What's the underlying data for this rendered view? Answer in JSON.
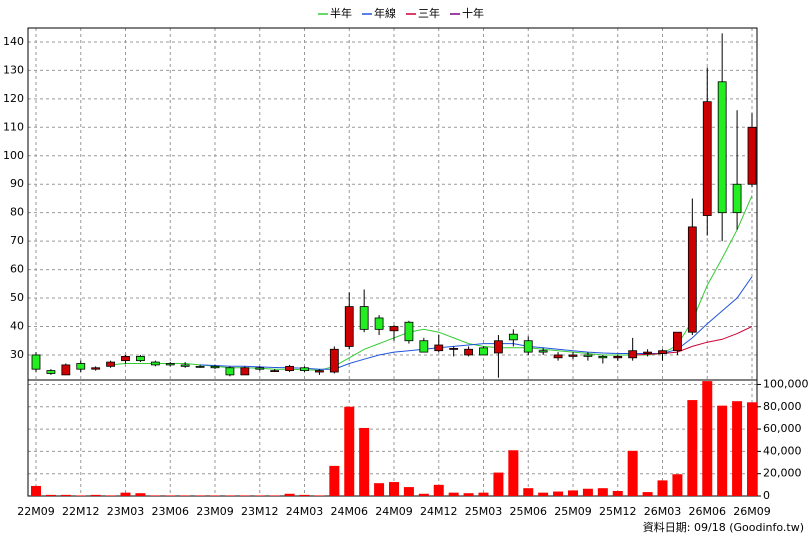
{
  "chart_data": {
    "type": "candlestick",
    "categories": [
      "22M09",
      null,
      null,
      "22M12",
      null,
      null,
      "23M03",
      null,
      null,
      "23M06",
      null,
      null,
      "23M09",
      null,
      null,
      "23M12",
      null,
      null,
      "24M03",
      null,
      null,
      "24M06",
      null,
      null,
      "24M09",
      null,
      null,
      "24M12",
      null,
      null,
      "25M03",
      null,
      null,
      "25M06",
      null,
      null,
      "25M09",
      null,
      null,
      "25M12",
      null,
      null,
      "26M03",
      null,
      null,
      "26M06",
      null,
      null,
      "26M09"
    ],
    "open": [
      30,
      24.5,
      23,
      27,
      25,
      26,
      28,
      29.5,
      27.5,
      27,
      26.5,
      26,
      26,
      25.5,
      23,
      25.5,
      24.5,
      24.5,
      25.5,
      24,
      24,
      33,
      47,
      43,
      38.5,
      41.5,
      35,
      31.5,
      32,
      30,
      32.5,
      30.7,
      37.3,
      35,
      31.5,
      29,
      29.5,
      30,
      29.5,
      29,
      29,
      30.5,
      30.5,
      31.5,
      38,
      79,
      126,
      90,
      90
    ],
    "high": [
      31,
      25,
      27,
      28,
      26,
      28,
      30,
      30,
      28,
      27.5,
      27.5,
      26.5,
      26.5,
      26,
      26,
      26,
      25,
      26.5,
      26,
      25,
      33,
      52,
      53,
      44,
      40.5,
      42,
      36,
      37,
      33,
      33,
      33,
      37,
      39,
      36.5,
      32.5,
      31,
      31,
      31,
      30,
      30,
      36,
      32,
      32,
      38,
      85,
      131,
      143,
      116,
      115
    ],
    "low": [
      24,
      23,
      23,
      24,
      24.5,
      25.5,
      27,
      27.5,
      26,
      26,
      25.5,
      25.5,
      25,
      22.5,
      23,
      24.5,
      24,
      24,
      24,
      23,
      23.5,
      32,
      38,
      37,
      35,
      34,
      31,
      31,
      29.5,
      29.5,
      30,
      22,
      33,
      30,
      30,
      28,
      28.5,
      28,
      27,
      28,
      28,
      29.5,
      28,
      30,
      37,
      72,
      70,
      74,
      89
    ],
    "close": [
      25,
      23.5,
      26.5,
      25,
      25.5,
      27.5,
      29.5,
      28,
      26.5,
      26.5,
      26,
      25.8,
      25.5,
      23,
      25.5,
      25,
      24.5,
      26,
      24.5,
      24.5,
      32,
      47,
      39,
      39,
      40,
      35,
      31,
      33.5,
      32.3,
      32,
      30,
      35,
      35.3,
      31,
      31,
      30,
      30,
      29.5,
      29,
      29.5,
      31.5,
      31,
      31.5,
      38,
      75,
      119,
      80,
      80,
      110
    ],
    "volume": [
      9000,
      1000,
      1000,
      500,
      1000,
      500,
      3000,
      2500,
      500,
      500,
      500,
      500,
      500,
      500,
      500,
      500,
      500,
      2000,
      1000,
      500,
      27000,
      80000,
      61000,
      11500,
      12500,
      8000,
      2000,
      10000,
      3000,
      2500,
      3000,
      21000,
      41000,
      7000,
      3000,
      4000,
      5000,
      6500,
      7000,
      4500,
      40500,
      3500,
      14000,
      19500,
      86000,
      103000,
      81000,
      85000,
      84000
    ],
    "up_color": "#cc0000",
    "down_color": "#22ee22",
    "volume_color": "#ff0000",
    "series": [
      {
        "name": "半年",
        "color": "#33cc33",
        "values": [
          null,
          null,
          null,
          null,
          null,
          26.5,
          27,
          27,
          27,
          27,
          27,
          26.5,
          26,
          25.5,
          25.5,
          25.3,
          25,
          25,
          24.8,
          24.6,
          26,
          29,
          32,
          34,
          36,
          38,
          39,
          38,
          36,
          34,
          33,
          32.5,
          32.5,
          32.5,
          32,
          31.5,
          31,
          30.5,
          30,
          30,
          30,
          30,
          30.5,
          33.5,
          42,
          54.5,
          64,
          74,
          86
        ]
      },
      {
        "name": "年線",
        "color": "#2255dd",
        "values": [
          null,
          null,
          null,
          null,
          null,
          null,
          null,
          null,
          null,
          null,
          null,
          26.5,
          26.3,
          26,
          26,
          25.8,
          25.6,
          25.5,
          25.3,
          25,
          25,
          27,
          28.5,
          30,
          31,
          31.5,
          32,
          32.5,
          33,
          33.5,
          34,
          34,
          34,
          33,
          32.5,
          32,
          31.5,
          31,
          30.7,
          30.5,
          30.5,
          30.5,
          30.5,
          32,
          36,
          41,
          45.5,
          50,
          57.5
        ]
      },
      {
        "name": "三年",
        "color": "#cc0033",
        "values": [
          null,
          null,
          null,
          null,
          null,
          null,
          null,
          null,
          null,
          null,
          null,
          null,
          null,
          null,
          null,
          null,
          null,
          null,
          null,
          null,
          null,
          null,
          null,
          null,
          null,
          null,
          null,
          null,
          null,
          null,
          null,
          null,
          null,
          null,
          null,
          null,
          null,
          null,
          null,
          null,
          30,
          30.2,
          30.5,
          31,
          33,
          34.5,
          35.5,
          37.5,
          40
        ]
      },
      {
        "name": "十年",
        "color": "#800080",
        "values": [
          null,
          null,
          null,
          null,
          null,
          null,
          null,
          null,
          null,
          null,
          null,
          null,
          null,
          null,
          null,
          null,
          null,
          null,
          null,
          null,
          null,
          null,
          null,
          null,
          null,
          null,
          null,
          null,
          null,
          null,
          null,
          null,
          null,
          null,
          null,
          null,
          null,
          null,
          null,
          null,
          null,
          null,
          null,
          null,
          null,
          null,
          null,
          null,
          null
        ]
      }
    ],
    "ylim": [
      21.2,
      144.9
    ],
    "yticks": [
      30,
      40,
      50,
      60,
      70,
      80,
      90,
      100,
      110,
      120,
      130,
      140
    ],
    "y2lim": [
      0,
      104000
    ],
    "y2ticks": [
      0,
      {
        "value": 20000,
        "label": "20,000"
      },
      {
        "value": 40000,
        "label": "40,000"
      },
      {
        "value": 60000,
        "label": "60,000"
      },
      {
        "value": 80000,
        "label": "80,000"
      },
      {
        "value": 100000,
        "label": "100,000"
      }
    ],
    "grid": true,
    "note": "資料日期: 09/18 (Goodinfo.tw)"
  }
}
